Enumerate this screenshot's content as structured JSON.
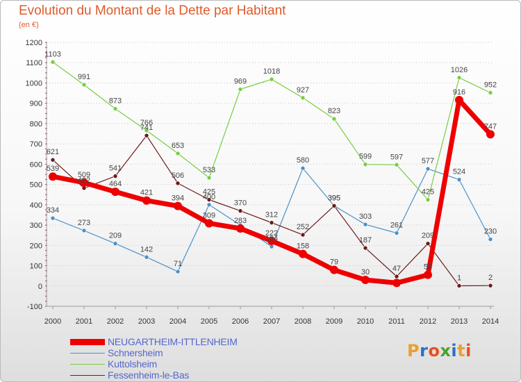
{
  "header": {
    "title": "Evolution du Montant de la Dette par Habitant",
    "subtitle": "(en €)"
  },
  "logo": {
    "text": "Proxiti",
    "colors": [
      "#e8a030",
      "#2a70c8",
      "#e85020",
      "#4aa030",
      "#2a70c8",
      "#e8a030",
      "#e85020"
    ]
  },
  "chart_data": {
    "type": "line",
    "title": "Evolution du Montant de la Dette par Habitant",
    "subtitle": "(en €)",
    "xlabel": "",
    "ylabel": "",
    "ylim": [
      -100,
      1200
    ],
    "yticks": [
      -100,
      0,
      100,
      200,
      300,
      400,
      500,
      600,
      700,
      800,
      900,
      1000,
      1100,
      1200
    ],
    "grid": "horizontal dotted",
    "legend_position": "bottom-left",
    "categories": [
      "2000",
      "2001",
      "2002",
      "2003",
      "2004",
      "2005",
      "2006",
      "2007",
      "2008",
      "2009",
      "2010",
      "2011",
      "2012",
      "2013",
      "2014"
    ],
    "series": [
      {
        "name": "NEUGARTHEIM-ITTLENHEIM",
        "color": "#ee0000",
        "highlight": true,
        "values": [
          539,
          509,
          464,
          421,
          394,
          309,
          283,
          222,
          158,
          79,
          30,
          15,
          55,
          916,
          747
        ],
        "labels": [
          "539",
          "509",
          "464",
          "421",
          "394",
          "309",
          "283",
          "222",
          "158",
          "79",
          "30",
          "",
          "55",
          "916",
          "747"
        ]
      },
      {
        "name": "Schnersheim",
        "color": "#4a90c8",
        "values": [
          334,
          273,
          209,
          142,
          71,
          400,
          300,
          194,
          580,
          395,
          303,
          261,
          577,
          524,
          230
        ],
        "labels": [
          "334",
          "273",
          "209",
          "142",
          "71",
          "400",
          "",
          "194",
          "580",
          "395",
          "303",
          "261",
          "577",
          "524",
          "230"
        ]
      },
      {
        "name": "Kuttolsheim",
        "color": "#7acc44",
        "values": [
          1103,
          991,
          873,
          766,
          653,
          533,
          969,
          1018,
          927,
          823,
          599,
          597,
          425,
          1026,
          952
        ],
        "labels": [
          "1103",
          "991",
          "873",
          "766",
          "653",
          "533",
          "969",
          "1018",
          "927",
          "823",
          "599",
          "597",
          "425",
          "1026",
          "952"
        ]
      },
      {
        "name": "Fessenheim-le-Bas",
        "color": "#6b1a1a",
        "values": [
          621,
          482,
          541,
          741,
          506,
          425,
          370,
          312,
          252,
          395,
          187,
          47,
          209,
          1,
          2
        ],
        "labels": [
          "621",
          "482",
          "541",
          "741",
          "506",
          "425",
          "370",
          "312",
          "252",
          "395",
          "187",
          "47",
          "209",
          "1",
          "2"
        ]
      }
    ]
  }
}
